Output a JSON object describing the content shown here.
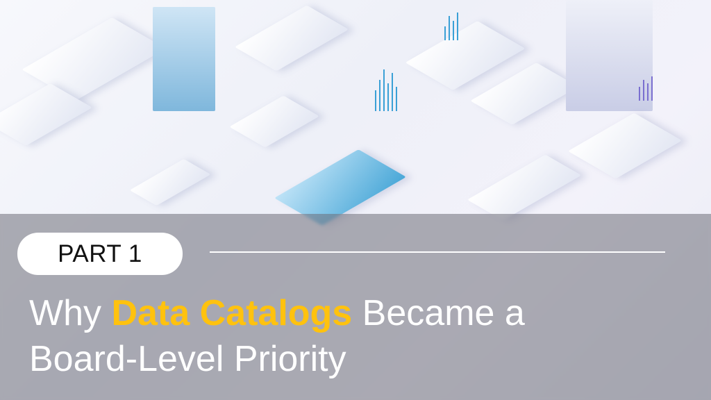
{
  "banner": {
    "part_label": "PART 1",
    "title": {
      "before": "Why ",
      "highlight": "Data Catalogs",
      "after_line1": " Became a",
      "line2": "Board-Level Priority"
    },
    "colors": {
      "highlight": "#ffc20e",
      "text": "#ffffff",
      "pill": "#ffffff",
      "overlay": "#6e6e78"
    }
  }
}
